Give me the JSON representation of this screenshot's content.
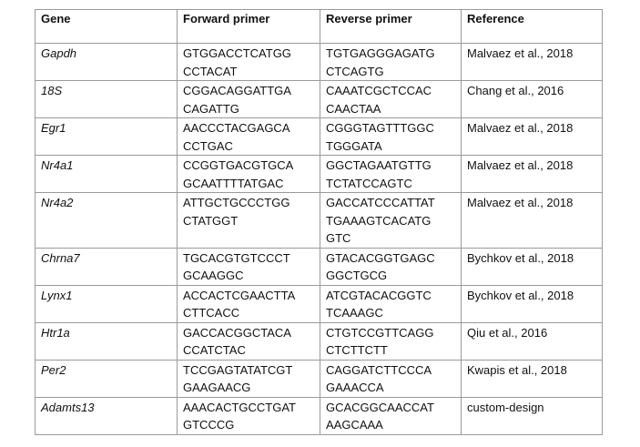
{
  "table": {
    "header": [
      "Gene",
      "Forward primer",
      "Reverse primer",
      "Reference"
    ],
    "rows": [
      [
        [
          "Gapdh"
        ],
        [
          "GTGGACCTCATGG",
          "CCTACAT"
        ],
        [
          "TGTGAGGGAGATG",
          "CTCAGTG"
        ],
        [
          "Malvaez et al., 2018"
        ]
      ],
      [
        [
          "18S"
        ],
        [
          "CGGACAGGATTGA",
          "CAGATTG"
        ],
        [
          "CAAATCGCTCCAC",
          "CAACTAA"
        ],
        [
          "Chang et al., 2016"
        ]
      ],
      [
        [
          "Egr1"
        ],
        [
          "AACCCTACGAGCA",
          "CCTGAC"
        ],
        [
          "CGGGTAGTTTGGC",
          "TGGGATA"
        ],
        [
          "Malvaez et al., 2018"
        ]
      ],
      [
        [
          "Nr4a1"
        ],
        [
          "CCGGTGACGTGCA",
          "GCAATTTTATGAC"
        ],
        [
          "GGCTAGAATGTTG",
          "TCTATCCAGTC"
        ],
        [
          "Malvaez et al., 2018"
        ]
      ],
      [
        [
          "Nr4a2"
        ],
        [
          "ATTGCTGCCCTGG",
          "CTATGGT"
        ],
        [
          "GACCATCCCATTAT",
          "TGAAAGTCACATG",
          "GTC"
        ],
        [
          "Malvaez et al., 2018"
        ]
      ],
      [
        [
          "Chrna7"
        ],
        [
          "TGCACGTGTCCCT",
          "GCAAGGC"
        ],
        [
          "GTACACGGTGAGC",
          "GGCTGCG"
        ],
        [
          "Bychkov et al., 2018"
        ]
      ],
      [
        [
          "Lynx1"
        ],
        [
          "ACCACTCGAACTTA",
          "CTTCACC"
        ],
        [
          "ATCGTACACGGTC",
          "TCAAAGC"
        ],
        [
          "Bychkov et al., 2018"
        ]
      ],
      [
        [
          "Htr1a"
        ],
        [
          "GACCACGGCTACA",
          "CCATCTAC"
        ],
        [
          "CTGTCCGTTCAGG",
          "CTCTTCTT"
        ],
        [
          "Qiu et al., 2016"
        ]
      ],
      [
        [
          "Per2"
        ],
        [
          "TCCGAGTATATCGT",
          "GAAGAACG"
        ],
        [
          "CAGGATCTTCCCA",
          "GAAACCA"
        ],
        [
          "Kwapis et al., 2018"
        ]
      ],
      [
        [
          "Adamts13"
        ],
        [
          "AAACACTGCCTGAT",
          "GTCCCG"
        ],
        [
          "GCACGGCAACCAT",
          "AAGCAAA"
        ],
        [
          "custom-design"
        ]
      ]
    ]
  }
}
